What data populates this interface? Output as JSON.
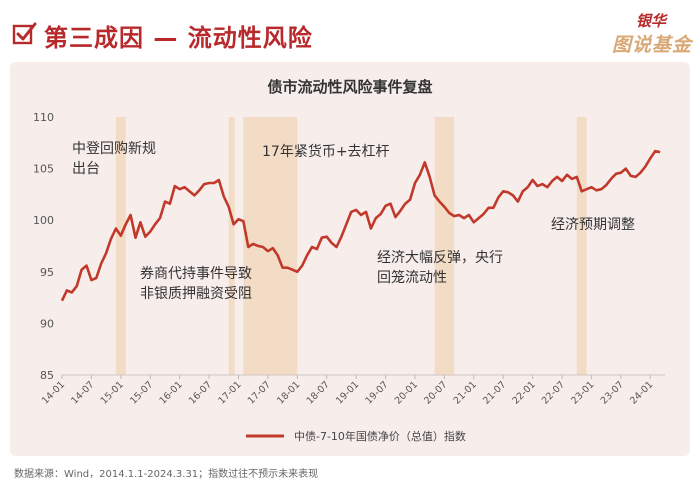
{
  "header": {
    "title": "第三成因 — 流动性风险",
    "brand_top": "银华",
    "brand_bottom": "图说基金"
  },
  "footer": {
    "source": "数据来源：Wind，2014.1.1-2024.3.31；指数过往不预示未来表现"
  },
  "colors": {
    "accent": "#b8292c",
    "line": "#c0392b",
    "shade": "#f3dcc6",
    "panel": "#f7eeec",
    "brand_gold": "#d9a877"
  },
  "chart_data": {
    "type": "line",
    "title": "债市流动性风险事件复盘",
    "ylim": [
      85,
      110
    ],
    "yticks": [
      85,
      90,
      95,
      100,
      105,
      110
    ],
    "xlim": [
      "2014-01",
      "2024-04"
    ],
    "xtick_labels": [
      "14-01",
      "14-07",
      "15-01",
      "15-07",
      "16-01",
      "16-07",
      "17-01",
      "17-07",
      "18-01",
      "18-07",
      "19-01",
      "19-07",
      "20-01",
      "20-07",
      "21-01",
      "21-07",
      "22-01",
      "22-07",
      "23-01",
      "23-07",
      "24-01"
    ],
    "legend": {
      "position": "bottom",
      "label": "中债-7-10年国债净价（总值）指数"
    },
    "shaded_periods": [
      {
        "start": "2014-12",
        "end": "2015-02"
      },
      {
        "start": "2016-11",
        "end": "2016-12"
      },
      {
        "start": "2017-02",
        "end": "2018-01"
      },
      {
        "start": "2020-05",
        "end": "2020-09"
      },
      {
        "start": "2022-10",
        "end": "2022-12"
      }
    ],
    "annotations": [
      {
        "lines": [
          "中登回购新规",
          "出台"
        ]
      },
      {
        "lines": [
          "券商代持事件导致",
          "非银质押融资受阻"
        ]
      },
      {
        "lines": [
          "17年紧货币+去杠杆"
        ]
      },
      {
        "lines": [
          "经济大幅反弹，央行",
          "回笼流动性"
        ]
      },
      {
        "lines": [
          "经济预期调整"
        ]
      }
    ],
    "series": [
      {
        "name": "中债-7-10年国债净价（总值）指数",
        "points": [
          [
            "2014-01",
            92.2
          ],
          [
            "2014-02",
            93.2
          ],
          [
            "2014-03",
            93.0
          ],
          [
            "2014-04",
            93.6
          ],
          [
            "2014-05",
            95.2
          ],
          [
            "2014-06",
            95.6
          ],
          [
            "2014-07",
            94.2
          ],
          [
            "2014-08",
            94.4
          ],
          [
            "2014-09",
            95.8
          ],
          [
            "2014-10",
            96.8
          ],
          [
            "2014-11",
            98.2
          ],
          [
            "2014-12",
            99.2
          ],
          [
            "2015-01",
            98.5
          ],
          [
            "2015-02",
            99.6
          ],
          [
            "2015-03",
            100.5
          ],
          [
            "2015-04",
            98.3
          ],
          [
            "2015-05",
            99.8
          ],
          [
            "2015-06",
            98.4
          ],
          [
            "2015-07",
            98.9
          ],
          [
            "2015-08",
            99.6
          ],
          [
            "2015-09",
            100.2
          ],
          [
            "2015-10",
            101.8
          ],
          [
            "2015-11",
            101.6
          ],
          [
            "2015-12",
            103.3
          ],
          [
            "2016-01",
            103.0
          ],
          [
            "2016-02",
            103.2
          ],
          [
            "2016-03",
            102.8
          ],
          [
            "2016-04",
            102.4
          ],
          [
            "2016-05",
            102.9
          ],
          [
            "2016-06",
            103.5
          ],
          [
            "2016-07",
            103.6
          ],
          [
            "2016-08",
            103.6
          ],
          [
            "2016-09",
            103.9
          ],
          [
            "2016-10",
            102.3
          ],
          [
            "2016-11",
            101.3
          ],
          [
            "2016-12",
            99.6
          ],
          [
            "2017-01",
            100.1
          ],
          [
            "2017-02",
            99.9
          ],
          [
            "2017-03",
            97.4
          ],
          [
            "2017-04",
            97.7
          ],
          [
            "2017-05",
            97.5
          ],
          [
            "2017-06",
            97.4
          ],
          [
            "2017-07",
            97.0
          ],
          [
            "2017-08",
            97.3
          ],
          [
            "2017-09",
            96.6
          ],
          [
            "2017-10",
            95.4
          ],
          [
            "2017-11",
            95.4
          ],
          [
            "2017-12",
            95.2
          ],
          [
            "2018-01",
            95.0
          ],
          [
            "2018-02",
            95.6
          ],
          [
            "2018-03",
            96.6
          ],
          [
            "2018-04",
            97.4
          ],
          [
            "2018-05",
            97.2
          ],
          [
            "2018-06",
            98.3
          ],
          [
            "2018-07",
            98.4
          ],
          [
            "2018-08",
            97.8
          ],
          [
            "2018-09",
            97.4
          ],
          [
            "2018-10",
            98.4
          ],
          [
            "2018-11",
            99.6
          ],
          [
            "2018-12",
            100.8
          ],
          [
            "2019-01",
            101.0
          ],
          [
            "2019-02",
            100.5
          ],
          [
            "2019-03",
            100.8
          ],
          [
            "2019-04",
            99.2
          ],
          [
            "2019-05",
            100.2
          ],
          [
            "2019-06",
            100.6
          ],
          [
            "2019-07",
            101.4
          ],
          [
            "2019-08",
            101.6
          ],
          [
            "2019-09",
            100.3
          ],
          [
            "2019-10",
            100.9
          ],
          [
            "2019-11",
            101.6
          ],
          [
            "2019-12",
            102.0
          ],
          [
            "2020-01",
            103.6
          ],
          [
            "2020-02",
            104.4
          ],
          [
            "2020-03",
            105.6
          ],
          [
            "2020-04",
            104.2
          ],
          [
            "2020-05",
            102.4
          ],
          [
            "2020-06",
            101.8
          ],
          [
            "2020-07",
            101.3
          ],
          [
            "2020-08",
            100.7
          ],
          [
            "2020-09",
            100.4
          ],
          [
            "2020-10",
            100.5
          ],
          [
            "2020-11",
            100.2
          ],
          [
            "2020-12",
            100.5
          ],
          [
            "2021-01",
            99.8
          ],
          [
            "2021-02",
            100.2
          ],
          [
            "2021-03",
            100.6
          ],
          [
            "2021-04",
            101.2
          ],
          [
            "2021-05",
            101.2
          ],
          [
            "2021-06",
            102.2
          ],
          [
            "2021-07",
            102.8
          ],
          [
            "2021-08",
            102.7
          ],
          [
            "2021-09",
            102.4
          ],
          [
            "2021-10",
            101.8
          ],
          [
            "2021-11",
            102.8
          ],
          [
            "2021-12",
            103.2
          ],
          [
            "2022-01",
            103.9
          ],
          [
            "2022-02",
            103.3
          ],
          [
            "2022-03",
            103.5
          ],
          [
            "2022-04",
            103.2
          ],
          [
            "2022-05",
            103.8
          ],
          [
            "2022-06",
            104.2
          ],
          [
            "2022-07",
            103.8
          ],
          [
            "2022-08",
            104.4
          ],
          [
            "2022-09",
            104.0
          ],
          [
            "2022-10",
            104.2
          ],
          [
            "2022-11",
            102.8
          ],
          [
            "2022-12",
            103.0
          ],
          [
            "2023-01",
            103.2
          ],
          [
            "2023-02",
            102.9
          ],
          [
            "2023-03",
            103.0
          ],
          [
            "2023-04",
            103.4
          ],
          [
            "2023-05",
            104.0
          ],
          [
            "2023-06",
            104.5
          ],
          [
            "2023-07",
            104.6
          ],
          [
            "2023-08",
            105.0
          ],
          [
            "2023-09",
            104.3
          ],
          [
            "2023-10",
            104.2
          ],
          [
            "2023-11",
            104.6
          ],
          [
            "2023-12",
            105.2
          ],
          [
            "2024-01",
            106.0
          ],
          [
            "2024-02",
            106.7
          ],
          [
            "2024-03",
            106.6
          ]
        ]
      }
    ]
  }
}
